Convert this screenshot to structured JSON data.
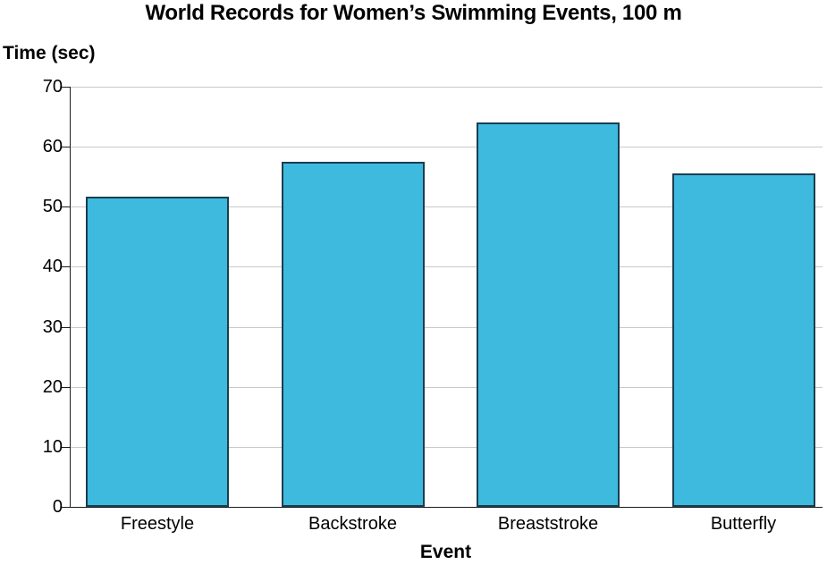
{
  "chart_data": {
    "type": "bar",
    "title": "World Records for Women’s Swimming Events, 100 m",
    "ylabel": "Time (sec)",
    "xlabel": "Event",
    "categories": [
      "Freestyle",
      "Backstroke",
      "Breaststroke",
      "Butterfly"
    ],
    "values": [
      51.7,
      57.5,
      64.1,
      55.5
    ],
    "ylim": [
      0,
      70
    ],
    "yticks": [
      0,
      10,
      20,
      30,
      40,
      50,
      60,
      70
    ],
    "grid": true,
    "legend": false,
    "colors": {
      "bar_fill": "#3EBADE",
      "bar_border": "#1C3D50",
      "gridline": "#C9C9C9",
      "axis": "#1A1A1A",
      "text": "#000000"
    }
  }
}
